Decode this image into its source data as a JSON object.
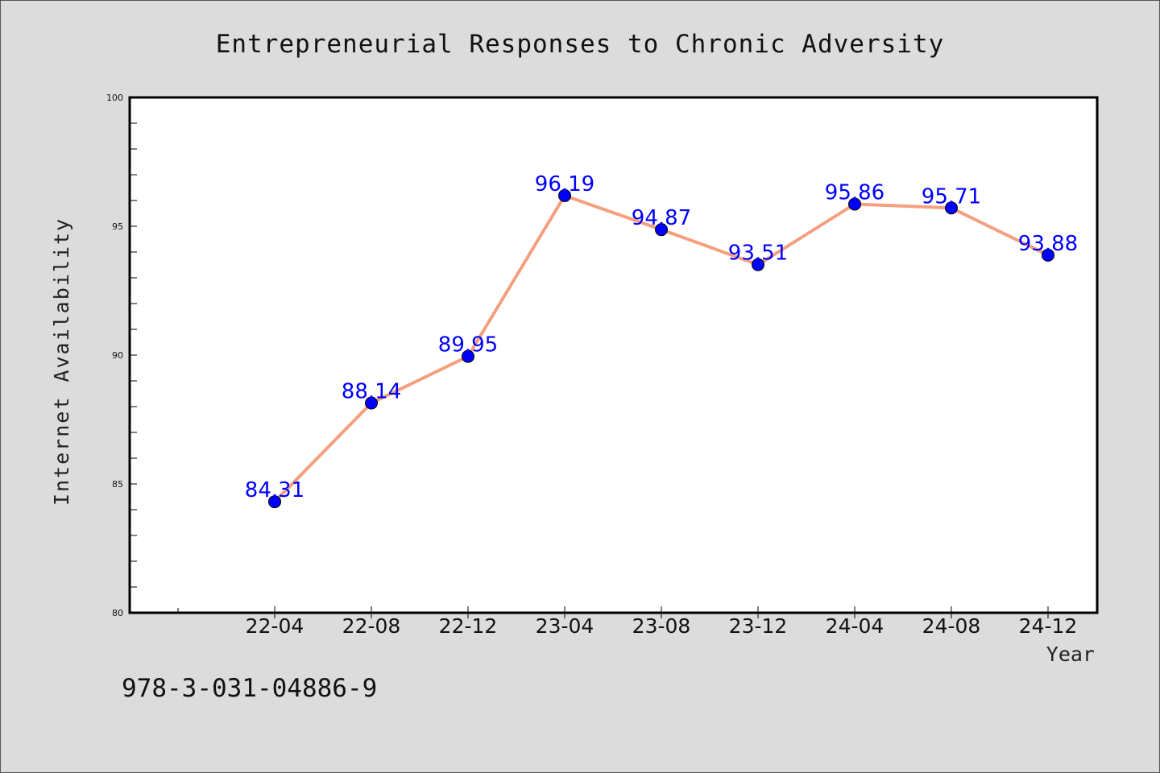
{
  "chart_data": {
    "type": "line",
    "title": "Entrepreneurial Responses to Chronic Adversity",
    "xlabel": "Year",
    "ylabel": "Internet Availability",
    "categories": [
      "22-04",
      "22-08",
      "22-12",
      "23-04",
      "23-08",
      "23-12",
      "24-04",
      "24-08",
      "24-12"
    ],
    "series": [
      {
        "values": [
          84.31,
          88.14,
          89.95,
          96.19,
          94.87,
          93.51,
          95.86,
          95.71,
          93.88
        ],
        "data_labels": [
          "84.31",
          "88.14",
          "89.95",
          "96.19",
          "94.87",
          "93.51",
          "95.86",
          "95.71",
          "93.88"
        ],
        "line_color": "#f4a07e",
        "marker_color": "#0000ff",
        "label_color": "#0000ff"
      }
    ],
    "ylim": [
      80,
      100
    ],
    "y_ticks": [
      "80",
      "85",
      "90",
      "95",
      "100"
    ],
    "grid": false,
    "legend": "none"
  },
  "annotation": "978-3-031-04886-9"
}
